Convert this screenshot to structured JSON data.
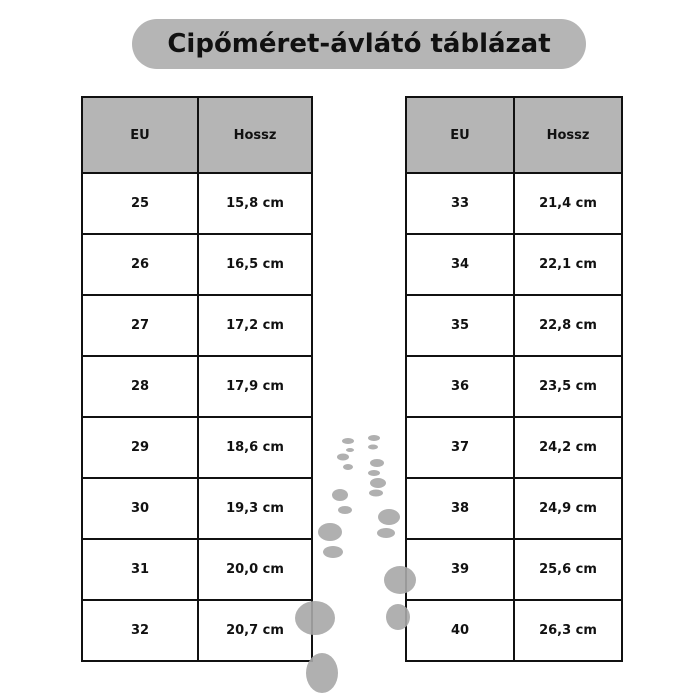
{
  "title": "Cipőméret-ávlátó táblázat",
  "tables": [
    {
      "headers": [
        "EU",
        "Hossz"
      ],
      "rows": [
        [
          "25",
          "15,8 cm"
        ],
        [
          "26",
          "16,5 cm"
        ],
        [
          "27",
          "17,2 cm"
        ],
        [
          "28",
          "17,9 cm"
        ],
        [
          "29",
          "18,6 cm"
        ],
        [
          "30",
          "19,3 cm"
        ],
        [
          "31",
          "20,0 cm"
        ],
        [
          "32",
          "20,7 cm"
        ]
      ]
    },
    {
      "headers": [
        "EU",
        "Hossz"
      ],
      "rows": [
        [
          "33",
          "21,4 cm"
        ],
        [
          "34",
          "22,1 cm"
        ],
        [
          "35",
          "22,8 cm"
        ],
        [
          "36",
          "23,5 cm"
        ],
        [
          "37",
          "24,2 cm"
        ],
        [
          "38",
          "24,9 cm"
        ],
        [
          "39",
          "25,6 cm"
        ],
        [
          "40",
          "26,3 cm"
        ]
      ]
    }
  ],
  "colors": {
    "header_bg": "#b5b5b5",
    "footprint": "#a8a8a8"
  },
  "decoration": "footprints-icon"
}
